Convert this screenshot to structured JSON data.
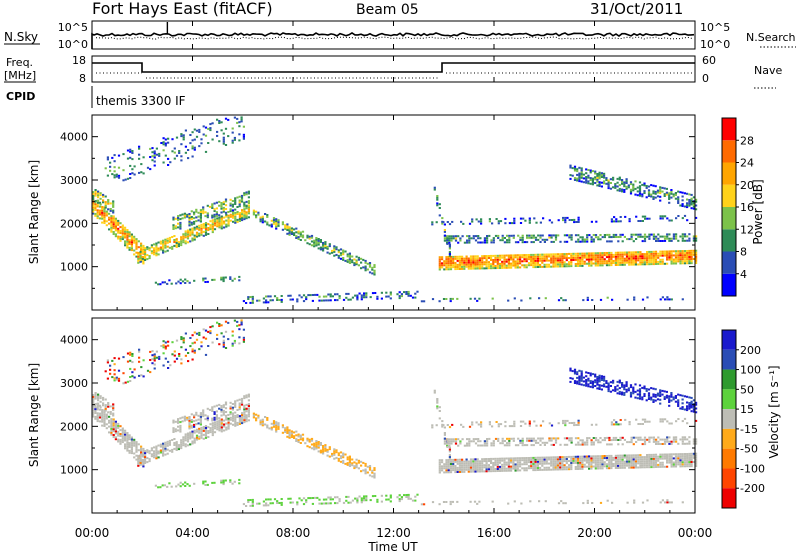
{
  "header": {
    "site": "Fort Hays East (fitACF)",
    "beam": "Beam 05",
    "date": "31/Oct/2011"
  },
  "noise_panel": {
    "left_label": "N.Sky",
    "right_label": "N.Search",
    "left_ticks": [
      "10^5",
      "10^0"
    ],
    "right_ticks": [
      "10^5",
      "10^0"
    ]
  },
  "freq_panel": {
    "left_label_1": "Freq.",
    "left_label_2": "[MHz]",
    "right_label": "Nave",
    "left_ticks": [
      "18",
      "8"
    ],
    "right_ticks": [
      "60",
      "0"
    ]
  },
  "cpid": {
    "label": "CPID",
    "value": "themis 3300 IF"
  },
  "colors": {
    "power_scale": [
      "#0000ff",
      "#2a4db5",
      "#2e8b57",
      "#7cc24a",
      "#ffd21a",
      "#ffa500",
      "#ff6a00",
      "#ff0000"
    ],
    "velocity_scale": [
      "#1a1acd",
      "#2a4db5",
      "#2e9a2e",
      "#5dd23c",
      "#bdbdb5",
      "#ffaa1a",
      "#ff7a00",
      "#ff4500",
      "#ee0000"
    ],
    "background": "#ffffff"
  },
  "chart_data": [
    {
      "type": "heatmap",
      "name": "power",
      "ylabel": "Slant Range [km]",
      "ylim": [
        0,
        4500
      ],
      "yticks": [
        "1000",
        "2000",
        "3000",
        "4000"
      ],
      "xlim_hours": [
        0,
        24
      ],
      "colorbar_label": "Power [dB]",
      "colorbar_ticks": [
        "4",
        "8",
        "12",
        "16",
        "20",
        "24",
        "28"
      ],
      "colorbar_range": [
        0,
        32
      ]
    },
    {
      "type": "heatmap",
      "name": "velocity",
      "ylabel": "Slant Range [km]",
      "ylim": [
        0,
        4500
      ],
      "yticks": [
        "1000",
        "2000",
        "3000",
        "4000"
      ],
      "xlim_hours": [
        0,
        24
      ],
      "colorbar_label": "Velocity [m s⁻¹]",
      "colorbar_ticks": [
        "200",
        "100",
        "50",
        "15",
        "-15",
        "-50",
        "-100",
        "-200"
      ]
    }
  ],
  "xaxis": {
    "ticks": [
      "00:00",
      "04:00",
      "08:00",
      "12:00",
      "16:00",
      "20:00",
      "00:00"
    ],
    "label": "Time UT"
  }
}
